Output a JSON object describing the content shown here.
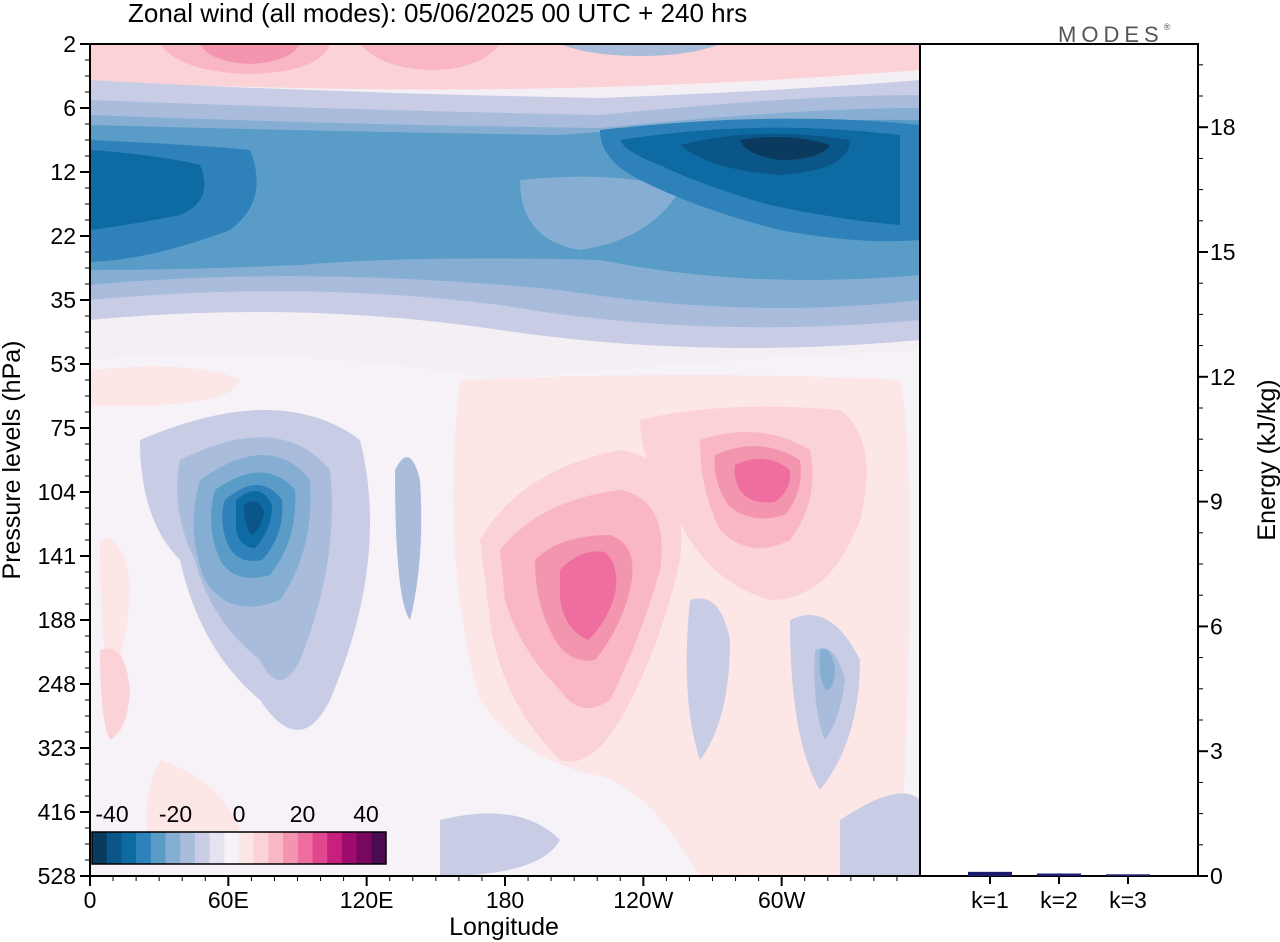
{
  "chart_data": {
    "type": "heatmap",
    "title": "Zonal wind (all modes):  05/06/2025  00 UTC  + 240 hrs",
    "brand": "MODES",
    "brand_mark": "®",
    "xlabel": "Longitude",
    "ylabel": "Pressure levels (hPa)",
    "x_ticks": [
      "0",
      "60E",
      "120E",
      "180",
      "120W",
      "60W"
    ],
    "y_ticks": [
      "2",
      "6",
      "12",
      "22",
      "35",
      "53",
      "75",
      "104",
      "141",
      "188",
      "248",
      "323",
      "416",
      "528"
    ],
    "colorbar": {
      "tick_labels": [
        "-40",
        "-20",
        "0",
        "20",
        "40"
      ],
      "range": [
        -40,
        40
      ],
      "colors": [
        "#0a3a5e",
        "#0b5689",
        "#0e6aa3",
        "#2f81b9",
        "#5a9cc8",
        "#86aed3",
        "#a9bcdc",
        "#c8cde5",
        "#e5e3f0",
        "#f6f2f7",
        "#fde6e6",
        "#fbd2d6",
        "#f8b7c2",
        "#f495b0",
        "#ee6ea0",
        "#e0478f",
        "#c5217d",
        "#9e0d6d",
        "#78085e",
        "#4a0b51"
      ]
    },
    "bar_panel": {
      "ylabel": "Energy (kJ/kg)",
      "y_ticks": [
        "0",
        "3",
        "6",
        "9",
        "12",
        "15",
        "18"
      ],
      "ylim": [
        0,
        20
      ],
      "categories": [
        "k=1",
        "k=2",
        "k=3"
      ],
      "values": [
        0.1,
        0.06,
        0.04
      ],
      "bar_color": "#1a1a6e"
    },
    "features": [
      {
        "name": "stratospheric easterly band",
        "level_range": [
          "8",
          "30"
        ],
        "value": -30
      },
      {
        "name": "easterly jet core 60W",
        "level_range": [
          "8",
          "12"
        ],
        "value": -40
      },
      {
        "name": "easterly core 70E",
        "level_range": [
          "90",
          "160"
        ],
        "value": -35
      },
      {
        "name": "westerly core 150W",
        "level_range": [
          "104",
          "200"
        ],
        "value": 20
      },
      {
        "name": "westerly core 60W",
        "level_range": [
          "90",
          "120"
        ],
        "value": 20
      },
      {
        "name": "upper westerly 2hPa",
        "level_range": [
          "2",
          "4"
        ],
        "value": 15
      }
    ]
  }
}
